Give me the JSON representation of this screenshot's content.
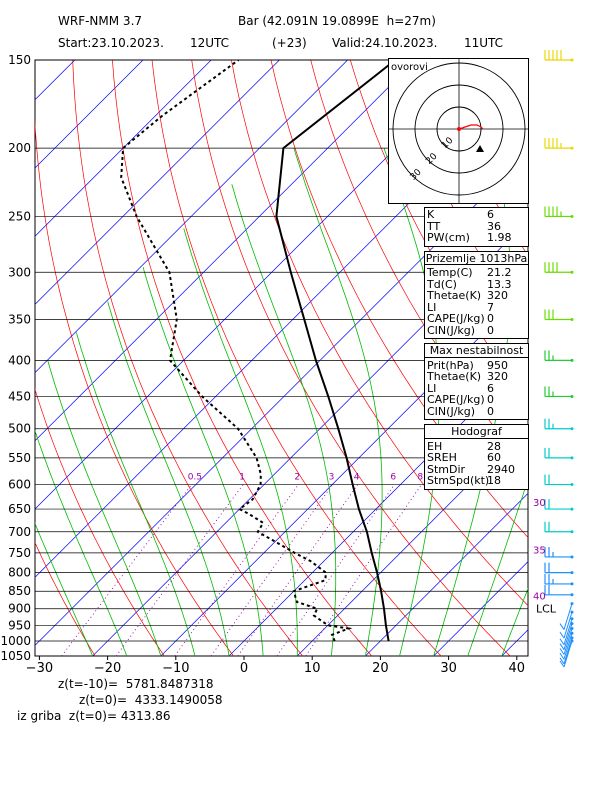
{
  "header": {
    "model": "WRF-NMM 3.7",
    "station": "Bar (42.091N 19.0899E  h=27m)",
    "start": "Start:23.10.2023.",
    "start_hour": "12UTC",
    "lead": "(+23)",
    "valid": "Valid:24.10.2023.",
    "valid_hour": "11UTC"
  },
  "footer": {
    "z_minus10": "z(t=-10)=  5781.8487318",
    "z_zero": "z(t=0)=  4333.1490058",
    "z_griba": "iz griba  z(t=0)= 4313.86"
  },
  "colors": {
    "isobars": "#000000",
    "isotherms": "#0000ff",
    "dry_adiabats": "#ff0000",
    "moist_adiabats": "#00bb00",
    "mixing_ratio": "#9900aa",
    "temperature": "#000000",
    "dewpoint": "#000000",
    "hodograph_line": "#ff0000"
  },
  "chart_data": {
    "type": "line",
    "chart_kind": "skew-T log-p diagram",
    "xlabel": "",
    "ylabel": "",
    "x_ticks": [
      -30,
      -20,
      -10,
      0,
      10,
      20,
      30,
      40
    ],
    "x_tick_labels": [
      "−30",
      "−20",
      "−10",
      "0",
      "10",
      "20",
      "30",
      "40"
    ],
    "y_ticks": [
      150,
      200,
      250,
      300,
      350,
      400,
      450,
      500,
      550,
      600,
      650,
      700,
      750,
      800,
      850,
      900,
      950,
      1000,
      1050
    ],
    "y_scale": "log",
    "ylim": [
      1050,
      150
    ],
    "mixing_ratio_labels": [
      "0.5",
      "1",
      "2",
      "3",
      "4",
      "6",
      "8"
    ],
    "mixing_ratio_values": [
      0.5,
      1,
      2,
      3,
      4,
      6,
      8
    ],
    "series": [
      {
        "style": "solid",
        "p": [
          1000,
          950,
          900,
          850,
          800,
          750,
          700,
          650,
          600,
          550,
          500,
          450,
          400,
          350,
          300,
          250,
          200,
          150
        ],
        "t": [
          21.2,
          18.5,
          15.8,
          12.8,
          9.5,
          5.8,
          2.0,
          -2.5,
          -7.0,
          -11.8,
          -17.3,
          -23.5,
          -30.6,
          -38.3,
          -47.2,
          -57.5,
          -66.5,
          -63.0
        ]
      },
      {
        "style": "dashed",
        "p": [
          1000,
          980,
          960,
          950,
          920,
          900,
          880,
          850,
          820,
          800,
          770,
          750,
          720,
          700,
          680,
          660,
          650,
          630,
          600,
          580,
          550,
          500,
          450,
          400,
          350,
          300,
          250,
          220,
          200,
          180,
          150
        ],
        "t": [
          13.3,
          12.0,
          13.5,
          10.0,
          6.5,
          6.0,
          2.0,
          0.0,
          3.0,
          2.0,
          -2.0,
          -5.5,
          -10.5,
          -14.0,
          -14.5,
          -18.0,
          -20.0,
          -19.5,
          -20.5,
          -22.0,
          -25.0,
          -32.0,
          -42.0,
          -52.0,
          -57.0,
          -65.0,
          -78.0,
          -86.0,
          -90.0,
          -89.0,
          -86.0
        ]
      }
    ],
    "annotations": [
      {
        "label": "LCL",
        "p": 900
      }
    ],
    "wind_barbs": {
      "p": [
        1000,
        990,
        975,
        960,
        945,
        930,
        910,
        885,
        860,
        830,
        800,
        760,
        700,
        650,
        600,
        550,
        500,
        450,
        400,
        350,
        300,
        250,
        200,
        150
      ],
      "speed_kt": [
        10,
        12,
        15,
        15,
        18,
        20,
        20,
        22,
        20,
        25,
        20,
        25,
        20,
        20,
        20,
        20,
        25,
        25,
        25,
        30,
        40,
        45,
        45,
        50
      ]
    },
    "height_markers_right": [
      {
        "label": "30",
        "p": 635
      },
      {
        "label": "35",
        "p": 742
      },
      {
        "label": "40",
        "p": 862
      }
    ],
    "hodograph": {
      "title": "ovorovi",
      "ring_labels": [
        "10",
        "20",
        "30"
      ],
      "u": [
        0,
        3,
        6,
        9,
        11,
        12
      ],
      "v": [
        0,
        1,
        2,
        2,
        1,
        0
      ]
    }
  },
  "indices": {
    "box1": [
      {
        "label": "K",
        "value": "6"
      },
      {
        "label": "TT",
        "value": "36"
      },
      {
        "label": "PW(cm)",
        "value": "1.98"
      }
    ],
    "box2_title": "Prizemlje 1013hPa",
    "box2": [
      {
        "label": "Temp(C)",
        "value": "21.2"
      },
      {
        "label": "Td(C)",
        "value": "13.3"
      },
      {
        "label": "Thetae(K)",
        "value": "320"
      },
      {
        "label": "LI",
        "value": "7"
      },
      {
        "label": "CAPE(J/kg)",
        "value": "0"
      },
      {
        "label": "CIN(J/kg)",
        "value": "0"
      }
    ],
    "box3_title": "Max nestabilnost",
    "box3": [
      {
        "label": "Prit(hPa)",
        "value": "950"
      },
      {
        "label": "Thetae(K)",
        "value": "320"
      },
      {
        "label": "LI",
        "value": "6"
      },
      {
        "label": "CAPE(J/kg)",
        "value": "0"
      },
      {
        "label": "CIN(J/kg)",
        "value": "0"
      }
    ],
    "box4_title": "Hodograf",
    "box4": [
      {
        "label": "EH",
        "value": "28"
      },
      {
        "label": "SREH",
        "value": "60"
      },
      {
        "label": "StmDir",
        "value": "2940"
      },
      {
        "label": "StmSpd(kt)",
        "value": "18"
      }
    ]
  }
}
